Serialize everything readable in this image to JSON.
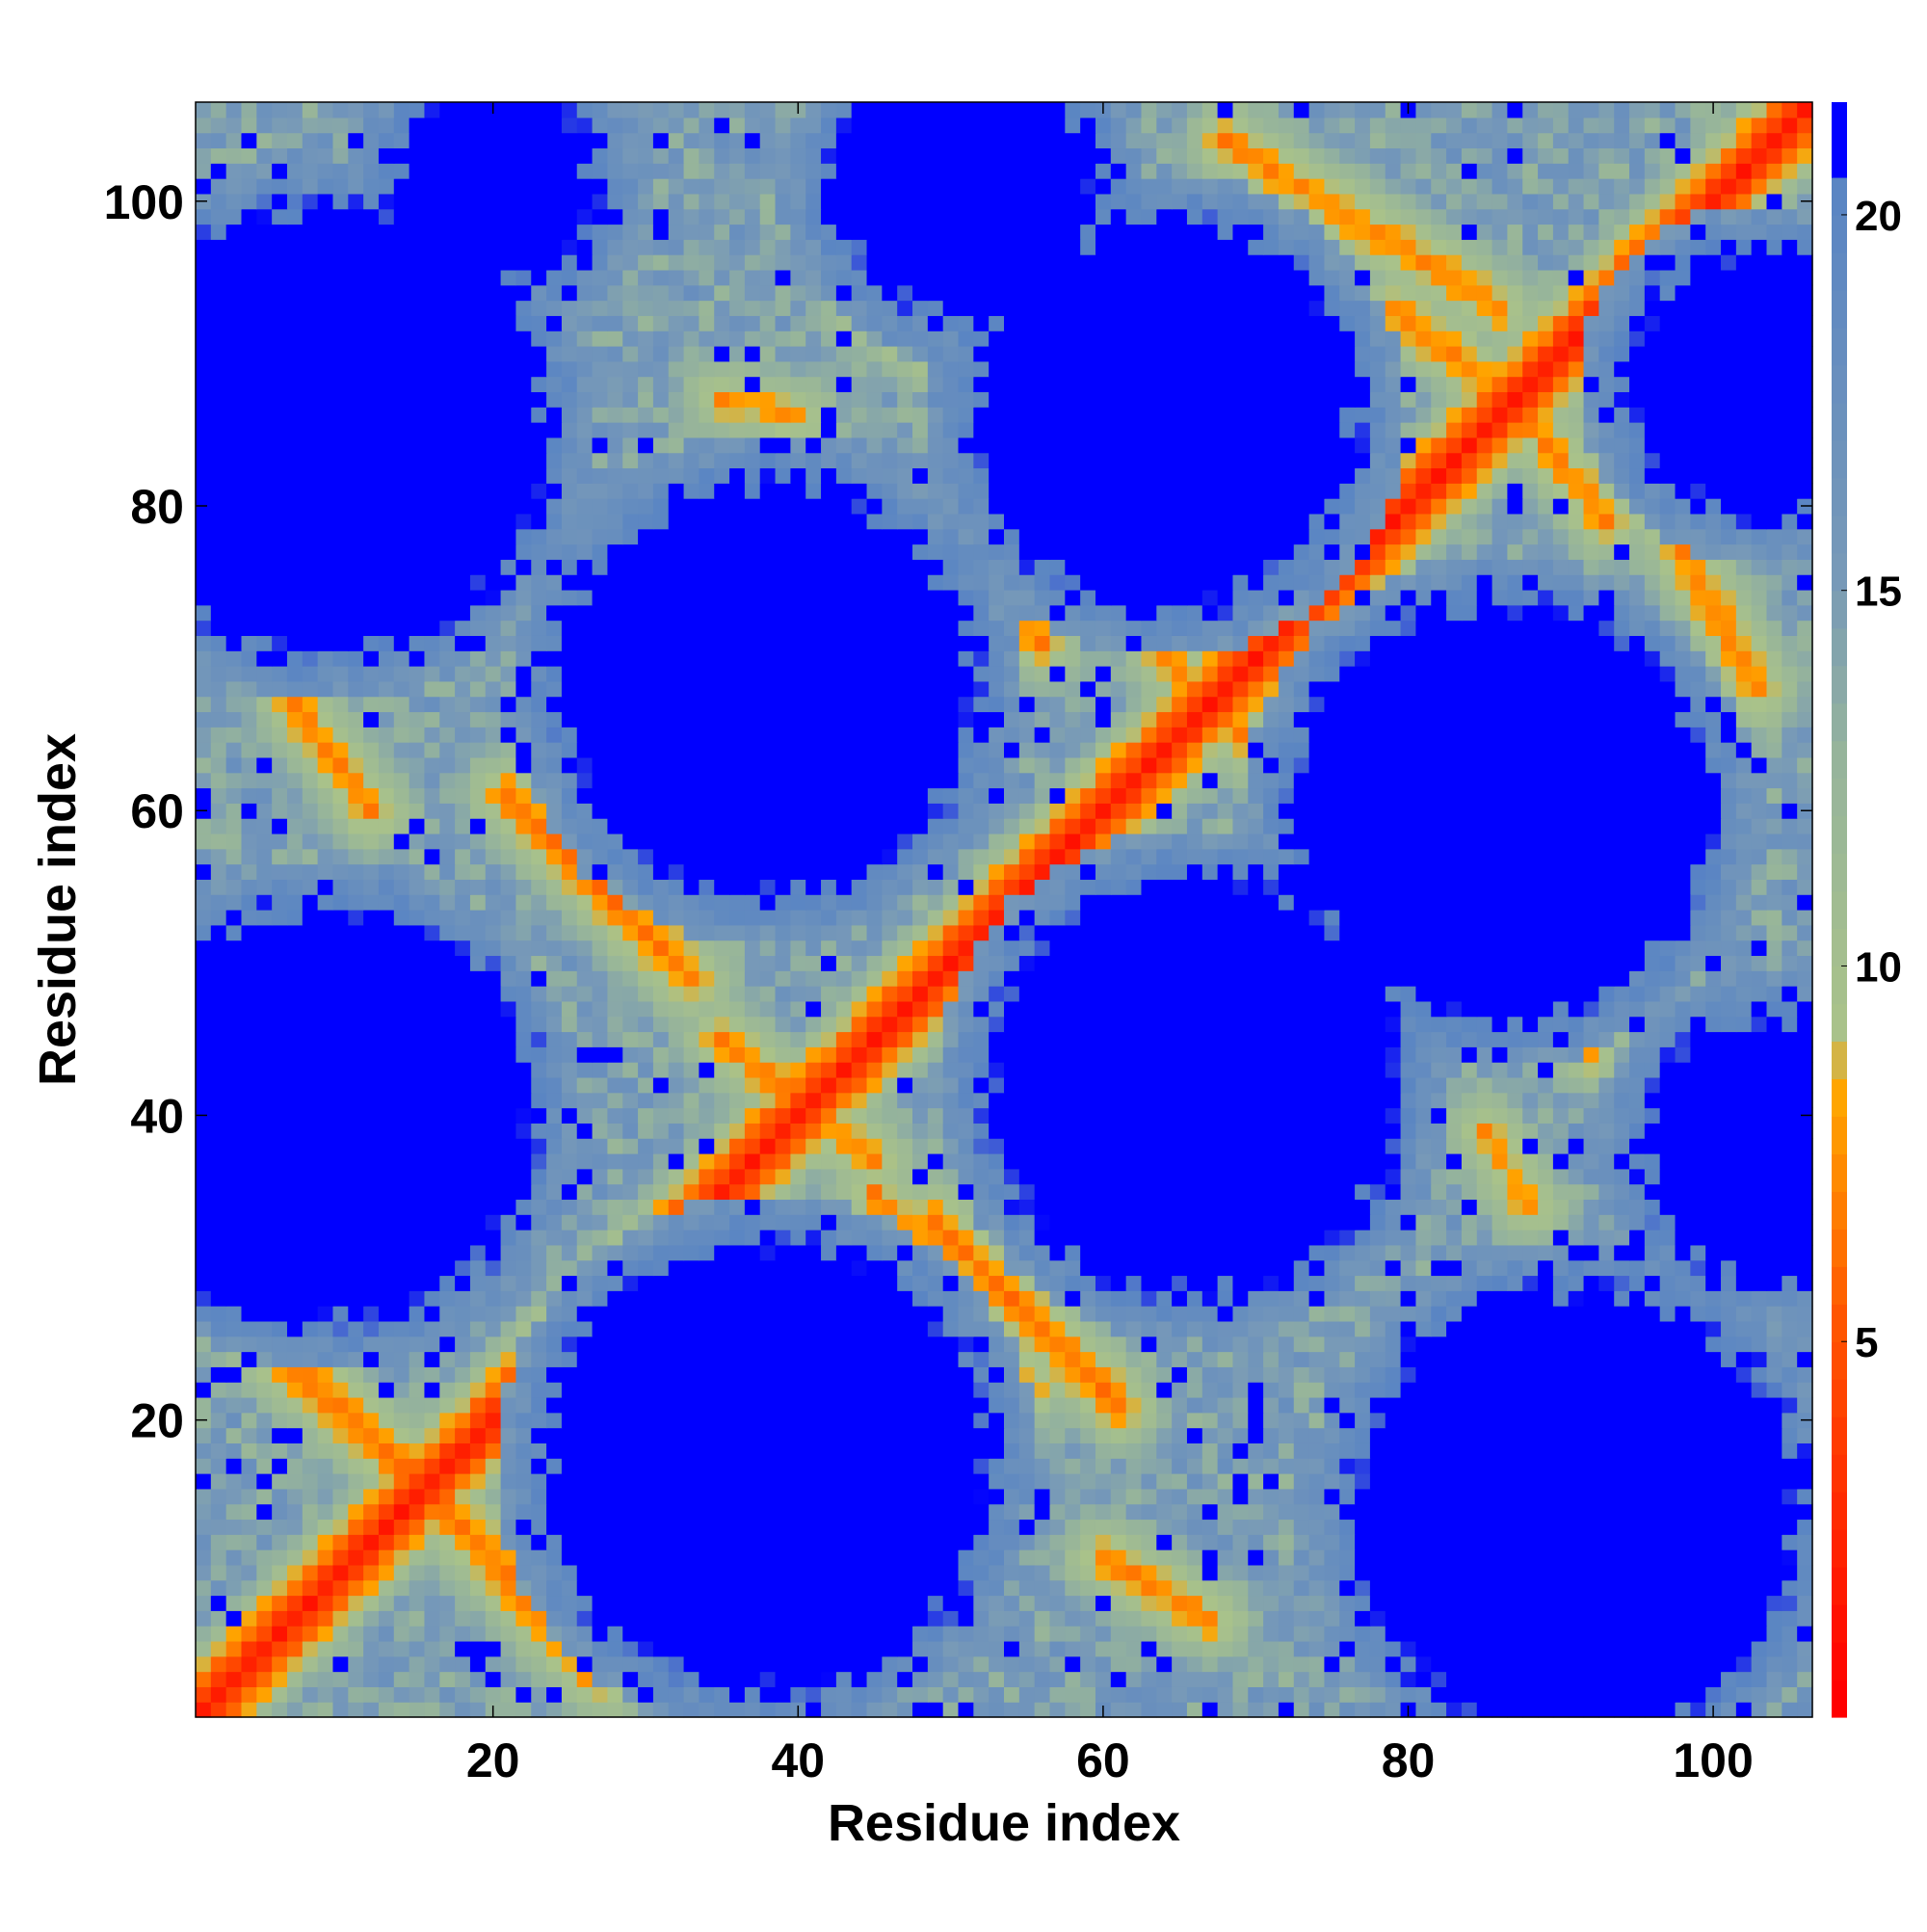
{
  "chart_data": {
    "type": "heatmap",
    "title": "",
    "xlabel": "Residue index",
    "ylabel": "Residue index",
    "n_residues": 106,
    "xlim": [
      1,
      106
    ],
    "ylim": [
      1,
      106
    ],
    "x_ticks": [
      20,
      40,
      60,
      80,
      100
    ],
    "y_ticks": [
      20,
      40,
      60,
      80,
      100
    ],
    "colorbar": {
      "range": [
        0,
        21.5
      ],
      "ticks": [
        5,
        10,
        15,
        20
      ],
      "colors": [
        {
          "value": 0,
          "color": "#ff0000"
        },
        {
          "value": 5,
          "color": "#ff5500"
        },
        {
          "value": 8,
          "color": "#ffa500"
        },
        {
          "value": 9,
          "color": "#a9c28a"
        },
        {
          "value": 12.5,
          "color": "#96b49b"
        },
        {
          "value": 15,
          "color": "#7799b8"
        },
        {
          "value": 20,
          "color": "#5a85c3"
        },
        {
          "value": 20.5,
          "color": "#0000ff"
        }
      ]
    },
    "cutoff_color": "#0000ff",
    "contact_bands": [
      {
        "from": [
          1,
          1
        ],
        "to": [
          106,
          106
        ],
        "value": 1.5
      },
      {
        "from": [
          3,
          27
        ],
        "to": [
          14,
          17
        ],
        "value": 6
      },
      {
        "from": [
          17,
          14
        ],
        "to": [
          27,
          3
        ],
        "value": 6
      },
      {
        "from": [
          21,
          61
        ],
        "to": [
          33,
          49
        ],
        "value": 6
      },
      {
        "from": [
          49,
          33
        ],
        "to": [
          61,
          21
        ],
        "value": 6
      },
      {
        "from": [
          35,
          45
        ],
        "to": [
          45,
          37
        ],
        "value": 6.5
      },
      {
        "from": [
          45,
          35
        ],
        "to": [
          55,
          22
        ],
        "value": 6.5
      },
      {
        "from": [
          7,
          67
        ],
        "to": [
          12,
          60
        ],
        "value": 6.5
      },
      {
        "from": [
          35,
          87
        ],
        "to": [
          40,
          86
        ],
        "value": 7
      },
      {
        "from": [
          44,
          93
        ],
        "to": [
          49,
          90
        ],
        "value": 7
      },
      {
        "from": [
          46,
          77
        ],
        "to": [
          56,
          71
        ],
        "value": 6.5
      },
      {
        "from": [
          64,
          70
        ],
        "to": [
          70,
          64
        ],
        "value": 6.5
      },
      {
        "from": [
          71,
          56
        ],
        "to": [
          77,
          46
        ],
        "value": 6.5
      },
      {
        "from": [
          60,
          11
        ],
        "to": [
          67,
          7
        ],
        "value": 6.5
      },
      {
        "from": [
          68,
          104
        ],
        "to": [
          86,
          93
        ],
        "value": 6.5
      },
      {
        "from": [
          79,
          93
        ],
        "to": [
          88,
          86
        ],
        "value": 6.5
      },
      {
        "from": [
          86,
          88
        ],
        "to": [
          93,
          79
        ],
        "value": 6.5
      },
      {
        "from": [
          93,
          86
        ],
        "to": [
          103,
          68
        ],
        "value": 6.5
      },
      {
        "from": [
          85,
          39
        ],
        "to": [
          88,
          34
        ],
        "value": 7
      },
      {
        "from": [
          89,
          47
        ],
        "to": [
          92,
          44
        ],
        "value": 7
      }
    ],
    "empty_regions": [
      {
        "center": [
          9,
          85
        ],
        "radius": 14
      },
      {
        "center": [
          9,
          40
        ],
        "radius": 13
      },
      {
        "center": [
          38,
          68
        ],
        "radius": 13
      },
      {
        "center": [
          38,
          17
        ],
        "radius": 14
      },
      {
        "center": [
          64,
          86
        ],
        "radius": 12
      },
      {
        "center": [
          66,
          42
        ],
        "radius": 13
      },
      {
        "center": [
          86,
          60
        ],
        "radius": 13
      },
      {
        "center": [
          91,
          14
        ],
        "radius": 14
      },
      {
        "center": [
          103,
          88
        ],
        "radius": 8
      },
      {
        "center": [
          104,
          38
        ],
        "radius": 8
      },
      {
        "center": [
          20,
          101
        ],
        "radius": 6
      },
      {
        "center": [
          51,
          101
        ],
        "radius": 8
      }
    ],
    "distance_scale": {
      "base": 10,
      "slope": 0.6,
      "radius_fill": 18,
      "noise": 2.5,
      "seed": 17
    }
  }
}
